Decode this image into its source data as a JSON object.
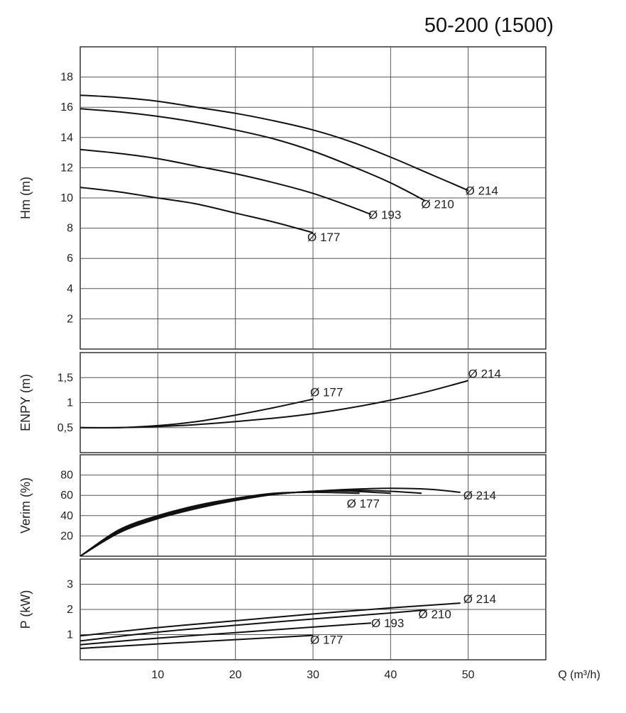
{
  "title": "50-200 (1500)",
  "chart_data": [
    {
      "id": "head",
      "type": "line",
      "ylabel": "Hm (m)",
      "xlim": [
        0,
        60
      ],
      "ylim": [
        0,
        20
      ],
      "yticks": [
        2,
        4,
        6,
        8,
        10,
        12,
        14,
        16,
        18
      ],
      "ytick_labels": [
        "2",
        "4",
        "6",
        "8",
        "10",
        "12",
        "14",
        "16",
        "18"
      ],
      "grid": true,
      "series": [
        {
          "name": "Ø 214",
          "x": [
            0,
            5,
            10,
            15,
            20,
            25,
            30,
            35,
            40,
            45,
            50
          ],
          "y": [
            16.8,
            16.65,
            16.4,
            16.0,
            15.6,
            15.1,
            14.5,
            13.7,
            12.7,
            11.6,
            10.5
          ]
        },
        {
          "name": "Ø 210",
          "x": [
            0,
            5,
            10,
            15,
            20,
            25,
            30,
            35,
            40,
            44.5
          ],
          "y": [
            15.9,
            15.7,
            15.4,
            15.0,
            14.5,
            13.9,
            13.1,
            12.1,
            11.0,
            9.8
          ]
        },
        {
          "name": "Ø 193",
          "x": [
            0,
            5,
            10,
            15,
            20,
            25,
            30,
            35,
            37.5
          ],
          "y": [
            13.2,
            12.95,
            12.6,
            12.1,
            11.6,
            11.0,
            10.3,
            9.4,
            8.9
          ]
        },
        {
          "name": "Ø 177",
          "x": [
            0,
            5,
            10,
            15,
            20,
            25,
            30
          ],
          "y": [
            10.7,
            10.4,
            10.0,
            9.6,
            9.0,
            8.4,
            7.7
          ]
        }
      ],
      "labels": [
        {
          "text": "Ø 214",
          "series": "Ø 214"
        },
        {
          "text": "Ø 210",
          "series": "Ø 210"
        },
        {
          "text": "Ø 193",
          "series": "Ø 193"
        },
        {
          "text": "Ø 177",
          "series": "Ø 177"
        }
      ]
    },
    {
      "id": "npsh",
      "type": "line",
      "ylabel": "ENPY (m)",
      "xlim": [
        0,
        60
      ],
      "ylim": [
        0,
        2
      ],
      "yticks": [
        0.5,
        1,
        1.5
      ],
      "ytick_labels": [
        "0,5",
        "1",
        "1,5"
      ],
      "grid": true,
      "series": [
        {
          "name": "Ø 177",
          "x": [
            0,
            5,
            10,
            15,
            20,
            25,
            30
          ],
          "y": [
            0.5,
            0.5,
            0.54,
            0.62,
            0.75,
            0.9,
            1.07
          ]
        },
        {
          "name": "Ø 214",
          "x": [
            0,
            5,
            10,
            15,
            20,
            25,
            30,
            35,
            40,
            45,
            50
          ],
          "y": [
            0.5,
            0.5,
            0.52,
            0.56,
            0.62,
            0.69,
            0.78,
            0.9,
            1.05,
            1.23,
            1.44
          ]
        }
      ],
      "labels": [
        {
          "text": "Ø 177",
          "series": "Ø 177"
        },
        {
          "text": "Ø 214",
          "series": "Ø 214"
        }
      ]
    },
    {
      "id": "efficiency",
      "type": "line",
      "ylabel": "Verim (%)",
      "xlim": [
        0,
        60
      ],
      "ylim": [
        0,
        100
      ],
      "yticks": [
        20,
        40,
        60,
        80
      ],
      "ytick_labels": [
        "20",
        "40",
        "60",
        "80"
      ],
      "grid": true,
      "series": [
        {
          "name": "Ø 177",
          "x": [
            0,
            5,
            10,
            15,
            20,
            25,
            30,
            36
          ],
          "y": [
            0,
            26,
            40,
            50,
            57,
            62,
            63,
            62
          ]
        },
        {
          "name": "Ø 193",
          "x": [
            0,
            5,
            10,
            15,
            20,
            25,
            30,
            35,
            40
          ],
          "y": [
            0,
            25,
            39,
            49,
            56,
            61,
            64,
            64,
            62
          ]
        },
        {
          "name": "Ø 210",
          "x": [
            0,
            5,
            10,
            15,
            20,
            25,
            30,
            35,
            40,
            44
          ],
          "y": [
            0,
            24,
            38,
            48,
            55,
            61,
            64,
            65,
            64,
            62
          ]
        },
        {
          "name": "Ø 214",
          "x": [
            0,
            5,
            10,
            15,
            20,
            25,
            30,
            35,
            40,
            45,
            49
          ],
          "y": [
            0,
            23,
            37,
            47,
            55,
            61,
            64,
            66,
            67,
            66,
            63
          ]
        }
      ],
      "labels": [
        {
          "text": "Ø 177",
          "series": "Ø 177"
        },
        {
          "text": "Ø 214",
          "series": "Ø 214"
        }
      ]
    },
    {
      "id": "power",
      "type": "line",
      "ylabel": "P (kW)",
      "xlabel": "Q (m³/h)",
      "xlim": [
        0,
        60
      ],
      "ylim": [
        0,
        4
      ],
      "xticks": [
        10,
        20,
        30,
        40,
        50
      ],
      "xtick_labels": [
        "10",
        "20",
        "30",
        "40",
        "50"
      ],
      "yticks": [
        1,
        2,
        3
      ],
      "ytick_labels": [
        "1",
        "2",
        "3"
      ],
      "grid": true,
      "series": [
        {
          "name": "Ø 214",
          "x": [
            0,
            10,
            20,
            30,
            40,
            49
          ],
          "y": [
            0.95,
            1.28,
            1.55,
            1.82,
            2.06,
            2.25
          ]
        },
        {
          "name": "Ø 210",
          "x": [
            0,
            10,
            20,
            30,
            40,
            44.5
          ],
          "y": [
            0.75,
            1.1,
            1.37,
            1.62,
            1.86,
            1.98
          ]
        },
        {
          "name": "Ø 193",
          "x": [
            0,
            10,
            20,
            30,
            37.5
          ],
          "y": [
            0.6,
            0.86,
            1.08,
            1.3,
            1.46
          ]
        },
        {
          "name": "Ø 177",
          "x": [
            0,
            10,
            20,
            30
          ],
          "y": [
            0.45,
            0.63,
            0.8,
            0.97
          ]
        }
      ],
      "labels": [
        {
          "text": "Ø 214",
          "series": "Ø 214"
        },
        {
          "text": "Ø 210",
          "series": "Ø 210"
        },
        {
          "text": "Ø 193",
          "series": "Ø 193"
        },
        {
          "text": "Ø 177",
          "series": "Ø 177"
        }
      ]
    }
  ]
}
